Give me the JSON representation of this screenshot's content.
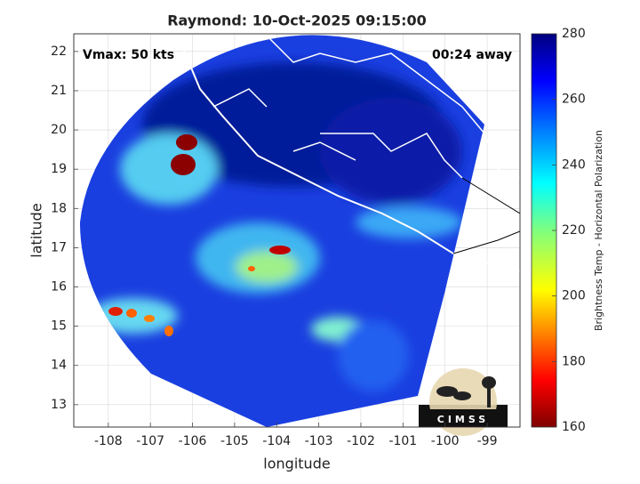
{
  "title": "Raymond: 10-Oct-2025 09:15:00",
  "annotations": {
    "vmax": "Vmax: 50 kts",
    "away": "00:24 away"
  },
  "map": {
    "xlabel": "longitude",
    "ylabel": "latitude",
    "xlim": [
      -108.82,
      -98.22
    ],
    "ylim": [
      12.43,
      22.45
    ],
    "xticks": [
      -108,
      -107,
      -106,
      -105,
      -104,
      -103,
      -102,
      -101,
      -100,
      -99
    ],
    "yticks": [
      13,
      14,
      15,
      16,
      17,
      18,
      19,
      20,
      21,
      22
    ],
    "grid": true
  },
  "colorbar": {
    "label": "Brightness Temp - Horizontal Polarization",
    "clim": [
      160,
      280
    ],
    "ticks": [
      160,
      180,
      200,
      220,
      240,
      260,
      280
    ]
  },
  "logo": "CIMSS"
}
